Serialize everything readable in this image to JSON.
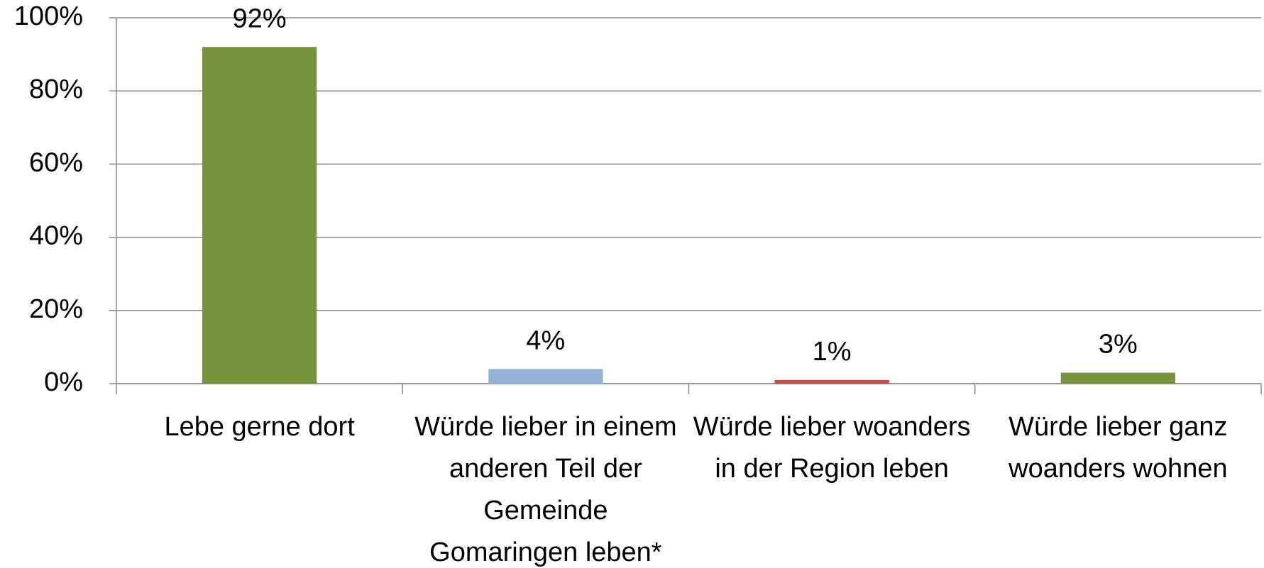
{
  "chart_data": {
    "type": "bar",
    "categories": [
      "Lebe gerne dort",
      "Würde lieber in einem anderen Teil der Gemeinde Gomaringen leben*",
      "Würde lieber woanders in der Region leben",
      "Würde lieber ganz woanders wohnen"
    ],
    "values": [
      92,
      4,
      1,
      3
    ],
    "value_labels": [
      "92%",
      "4%",
      "1%",
      "3%"
    ],
    "colors": [
      "#77933c",
      "#95b3d7",
      "#c0504d",
      "#77933c"
    ],
    "ylim": [
      0,
      100
    ],
    "yticks": [
      {
        "value": 0,
        "label": "0%"
      },
      {
        "value": 20,
        "label": "20%"
      },
      {
        "value": 40,
        "label": "40%"
      },
      {
        "value": 60,
        "label": "60%"
      },
      {
        "value": 80,
        "label": "80%"
      },
      {
        "value": 100,
        "label": "100%"
      }
    ],
    "grid": true
  }
}
